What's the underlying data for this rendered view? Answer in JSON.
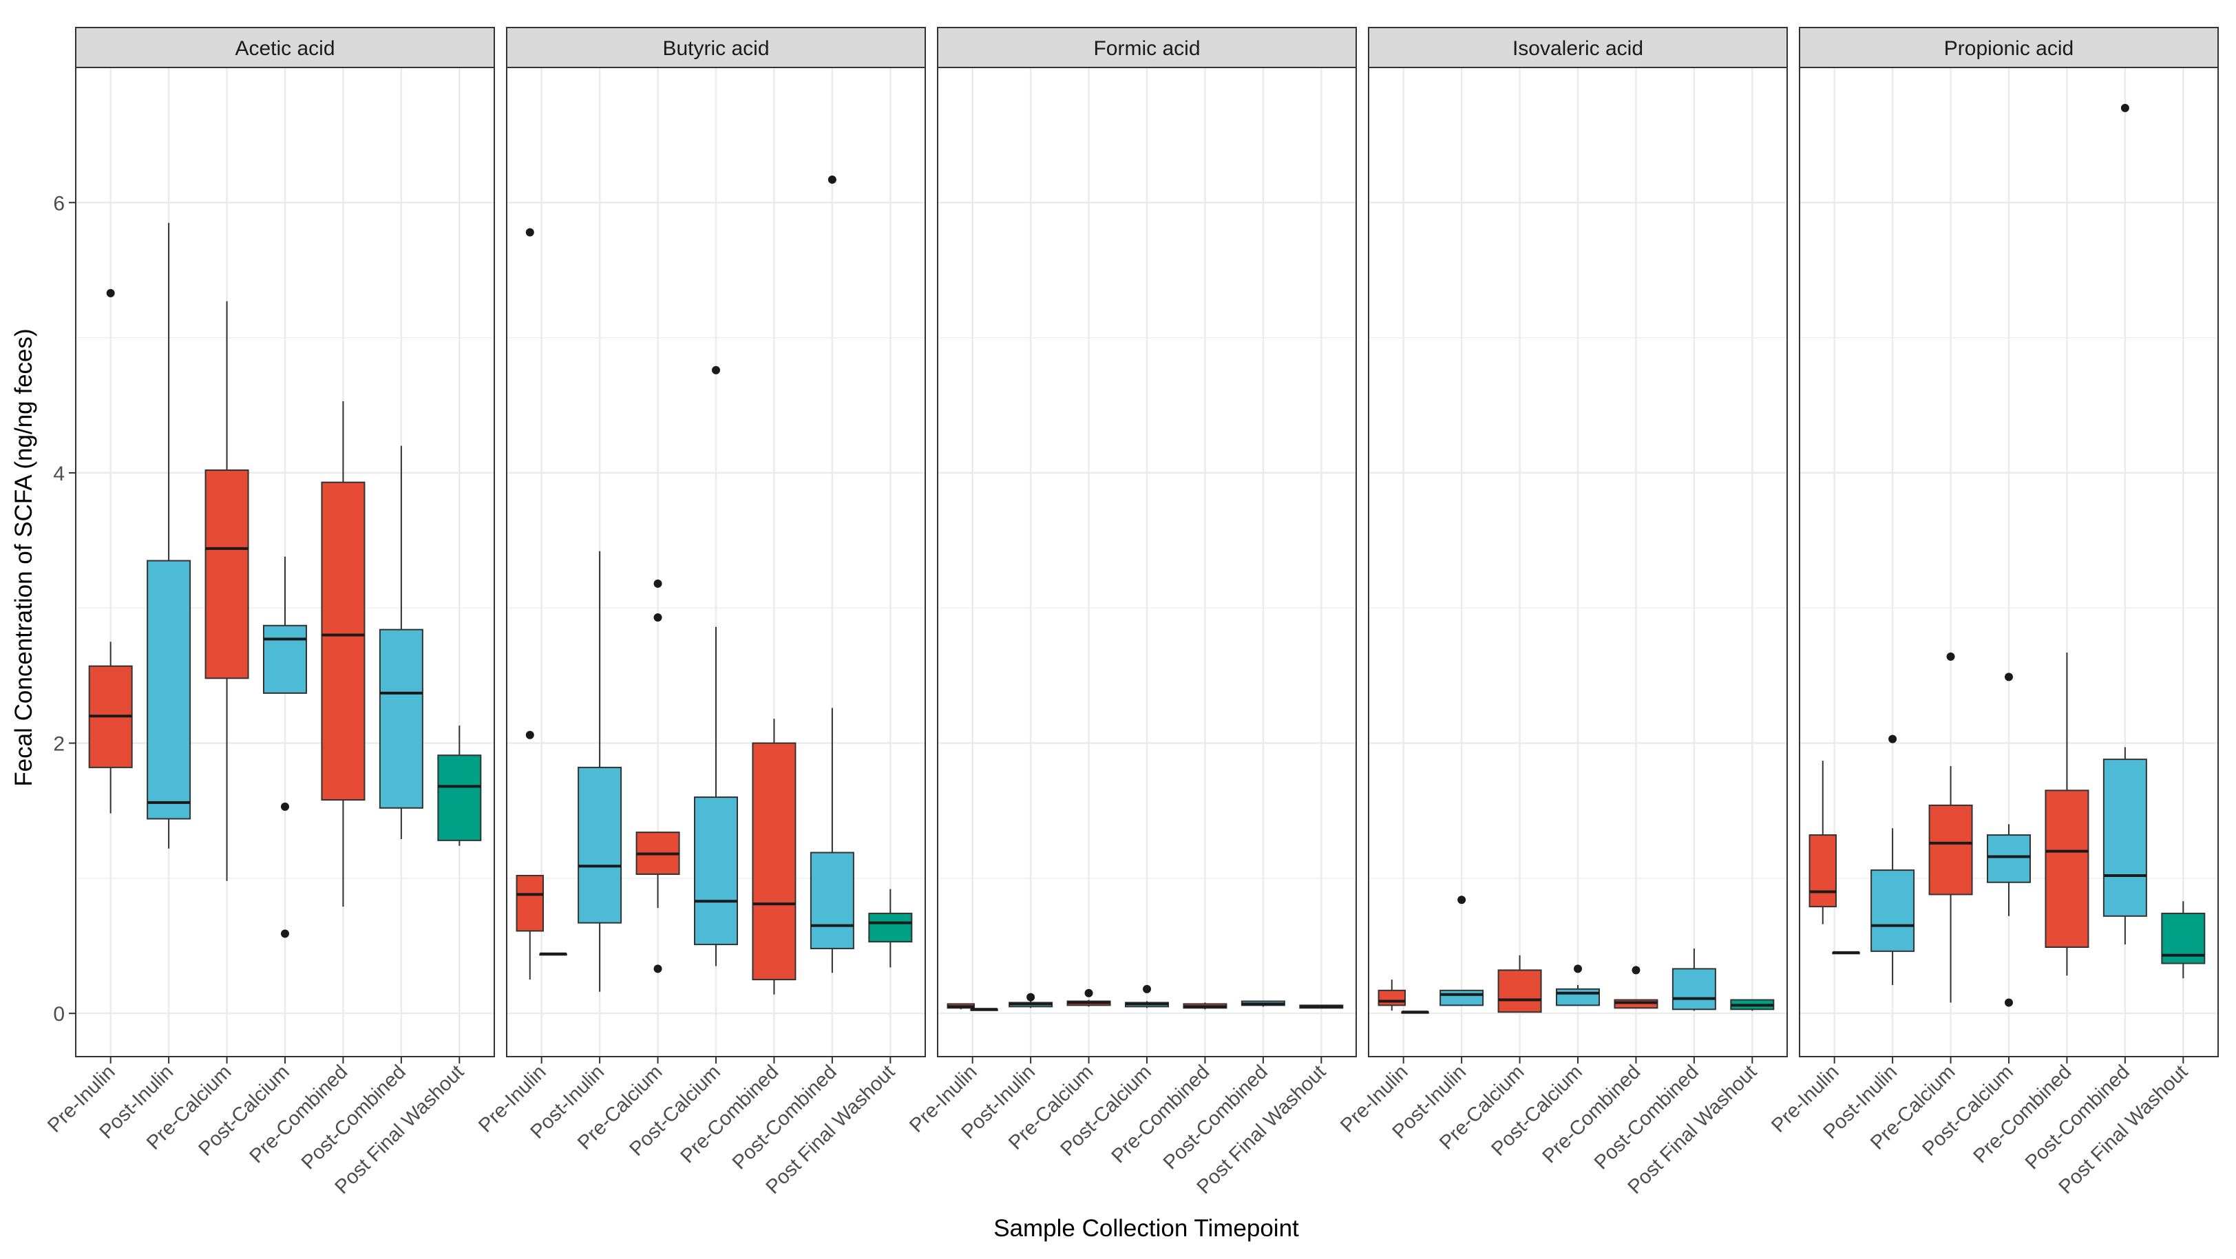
{
  "chart_data": {
    "type": "boxplot",
    "ylabel": "Fecal Concentration of SCFA (ng/ng feces)",
    "xlabel": "Sample Collection Timepoint",
    "categories": [
      "Pre-Inulin",
      "Post-Inulin",
      "Pre-Calcium",
      "Post-Calcium",
      "Pre-Combined",
      "Post-Combined",
      "Post Final Washout"
    ],
    "y_ticks": [
      "0",
      "2",
      "4",
      "6"
    ],
    "ylim": [
      -0.32,
      7.0
    ],
    "grid": true,
    "legend": "none",
    "colors": {
      "pre": "#E64B35",
      "post": "#4DBBD5",
      "washout": "#00A087",
      "strip_bg": "#D9D9D9",
      "grid": "#EBEBEB"
    },
    "box_fill_by_category": [
      "pre",
      "post",
      "pre",
      "post",
      "pre",
      "post",
      "washout"
    ],
    "panels": [
      {
        "name": "Acetic acid",
        "boxes": [
          {
            "q1": 1.82,
            "med": 2.2,
            "q3": 2.57,
            "lo": 1.48,
            "hi": 2.75,
            "out": [
              5.33
            ]
          },
          {
            "q1": 1.44,
            "med": 1.56,
            "q3": 3.35,
            "lo": 1.22,
            "hi": 5.85,
            "out": []
          },
          {
            "q1": 2.48,
            "med": 3.44,
            "q3": 4.02,
            "lo": 0.98,
            "hi": 5.27,
            "out": []
          },
          {
            "q1": 2.37,
            "med": 2.77,
            "q3": 2.87,
            "lo": 2.37,
            "hi": 3.38,
            "out": [
              1.53,
              0.59
            ]
          },
          {
            "q1": 1.58,
            "med": 2.8,
            "q3": 3.93,
            "lo": 0.79,
            "hi": 4.53,
            "out": []
          },
          {
            "q1": 1.52,
            "med": 2.37,
            "q3": 2.84,
            "lo": 1.29,
            "hi": 4.2,
            "out": []
          },
          {
            "q1": 1.28,
            "med": 1.68,
            "q3": 1.91,
            "lo": 1.24,
            "hi": 2.13,
            "out": []
          }
        ]
      },
      {
        "name": "Butyric acid",
        "boxes": [
          {
            "q1": 0.61,
            "med": 0.88,
            "q3": 1.02,
            "lo": 0.25,
            "hi": 1.02,
            "out": [
              5.78,
              2.06
            ]
          },
          {
            "q1": 0.44,
            "med": 0.44,
            "q3": 0.44,
            "lo": 0.44,
            "hi": 0.44,
            "out": []
          },
          {
            "q1": 0.67,
            "med": 1.09,
            "q3": 1.82,
            "lo": 0.16,
            "hi": 3.42,
            "out": []
          },
          {
            "q1": 1.03,
            "med": 1.18,
            "q3": 1.34,
            "lo": 0.78,
            "hi": 1.34,
            "out": [
              3.18,
              2.93,
              0.33
            ]
          },
          {
            "q1": 0.51,
            "med": 0.83,
            "q3": 1.6,
            "lo": 0.35,
            "hi": 2.86,
            "out": [
              4.76
            ]
          },
          {
            "q1": 0.25,
            "med": 0.81,
            "q3": 2.0,
            "lo": 0.14,
            "hi": 2.18,
            "out": []
          },
          {
            "q1": 0.48,
            "med": 0.65,
            "q3": 1.19,
            "lo": 0.3,
            "hi": 2.26,
            "out": [
              6.17
            ]
          },
          {
            "q1": 0.53,
            "med": 0.67,
            "q3": 0.74,
            "lo": 0.34,
            "hi": 0.92,
            "out": []
          }
        ]
      },
      {
        "name": "Formic acid",
        "boxes": [
          {
            "q1": 0.04,
            "med": 0.05,
            "q3": 0.07,
            "lo": 0.03,
            "hi": 0.07,
            "out": []
          },
          {
            "q1": 0.03,
            "med": 0.03,
            "q3": 0.03,
            "lo": 0.03,
            "hi": 0.03,
            "out": []
          },
          {
            "q1": 0.05,
            "med": 0.07,
            "q3": 0.08,
            "lo": 0.04,
            "hi": 0.09,
            "out": [
              0.12
            ]
          },
          {
            "q1": 0.06,
            "med": 0.08,
            "q3": 0.09,
            "lo": 0.05,
            "hi": 0.1,
            "out": [
              0.15
            ]
          },
          {
            "q1": 0.05,
            "med": 0.07,
            "q3": 0.08,
            "lo": 0.04,
            "hi": 0.09,
            "out": [
              0.18
            ]
          },
          {
            "q1": 0.04,
            "med": 0.05,
            "q3": 0.07,
            "lo": 0.03,
            "hi": 0.08,
            "out": []
          },
          {
            "q1": 0.06,
            "med": 0.07,
            "q3": 0.09,
            "lo": 0.05,
            "hi": 0.09,
            "out": []
          },
          {
            "q1": 0.04,
            "med": 0.05,
            "q3": 0.06,
            "lo": 0.04,
            "hi": 0.06,
            "out": []
          }
        ]
      },
      {
        "name": "Isovaleric acid",
        "boxes": [
          {
            "q1": 0.06,
            "med": 0.09,
            "q3": 0.17,
            "lo": 0.02,
            "hi": 0.25,
            "out": []
          },
          {
            "q1": 0.01,
            "med": 0.01,
            "q3": 0.01,
            "lo": 0.01,
            "hi": 0.01,
            "out": []
          },
          {
            "q1": 0.06,
            "med": 0.14,
            "q3": 0.17,
            "lo": 0.06,
            "hi": 0.17,
            "out": [
              0.84
            ]
          },
          {
            "q1": 0.01,
            "med": 0.1,
            "q3": 0.32,
            "lo": 0.01,
            "hi": 0.43,
            "out": []
          },
          {
            "q1": 0.06,
            "med": 0.15,
            "q3": 0.18,
            "lo": 0.06,
            "hi": 0.21,
            "out": [
              0.33
            ]
          },
          {
            "q1": 0.04,
            "med": 0.08,
            "q3": 0.1,
            "lo": 0.04,
            "hi": 0.1,
            "out": [
              0.32
            ]
          },
          {
            "q1": 0.03,
            "med": 0.11,
            "q3": 0.33,
            "lo": 0.02,
            "hi": 0.48,
            "out": []
          },
          {
            "q1": 0.03,
            "med": 0.06,
            "q3": 0.1,
            "lo": 0.02,
            "hi": 0.1,
            "out": []
          }
        ]
      },
      {
        "name": "Propionic acid",
        "boxes": [
          {
            "q1": 0.79,
            "med": 0.9,
            "q3": 1.32,
            "lo": 0.66,
            "hi": 1.87,
            "out": []
          },
          {
            "q1": 0.45,
            "med": 0.45,
            "q3": 0.45,
            "lo": 0.45,
            "hi": 0.45,
            "out": []
          },
          {
            "q1": 0.46,
            "med": 0.65,
            "q3": 1.06,
            "lo": 0.21,
            "hi": 1.37,
            "out": [
              2.03
            ]
          },
          {
            "q1": 0.88,
            "med": 1.26,
            "q3": 1.54,
            "lo": 0.08,
            "hi": 1.83,
            "out": [
              2.64
            ]
          },
          {
            "q1": 0.97,
            "med": 1.16,
            "q3": 1.32,
            "lo": 0.72,
            "hi": 1.4,
            "out": [
              2.49,
              0.08
            ]
          },
          {
            "q1": 0.49,
            "med": 1.2,
            "q3": 1.65,
            "lo": 0.28,
            "hi": 2.67,
            "out": []
          },
          {
            "q1": 0.72,
            "med": 1.02,
            "q3": 1.88,
            "lo": 0.51,
            "hi": 1.97,
            "out": [
              6.7
            ]
          },
          {
            "q1": 0.37,
            "med": 0.43,
            "q3": 0.74,
            "lo": 0.26,
            "hi": 0.83,
            "out": []
          }
        ]
      }
    ],
    "box_positions": [
      0.8,
      1.2,
      2,
      3,
      4,
      5,
      6,
      7
    ],
    "box_fill_by_position": [
      "pre",
      "pre",
      "post",
      "pre",
      "post",
      "pre",
      "post",
      "washout"
    ]
  }
}
